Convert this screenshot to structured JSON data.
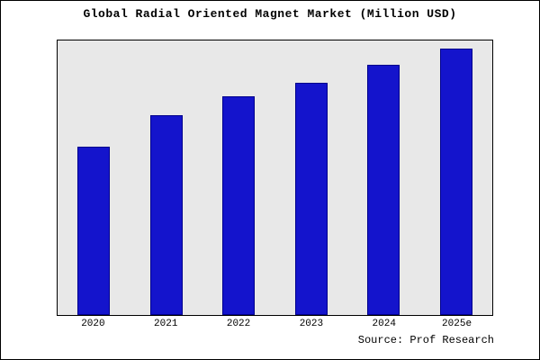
{
  "title": "Global Radial Oriented Magnet Market (Million USD)",
  "source": "Source: Prof Research",
  "chart_data": {
    "type": "bar",
    "categories": [
      "2020",
      "2021",
      "2022",
      "2023",
      "2024",
      "2025e"
    ],
    "values": [
      63,
      75,
      82,
      87,
      94,
      100
    ],
    "title": "Global Radial Oriented Magnet Market (Million USD)",
    "xlabel": "",
    "ylabel": "",
    "ylim": [
      0,
      103
    ],
    "grid": false,
    "legend_position": "none",
    "bar_color": "#1414cc",
    "bar_border_color": "#00008b",
    "plot_background": "#e8e8e8",
    "annotation": "Source: Prof Research"
  }
}
